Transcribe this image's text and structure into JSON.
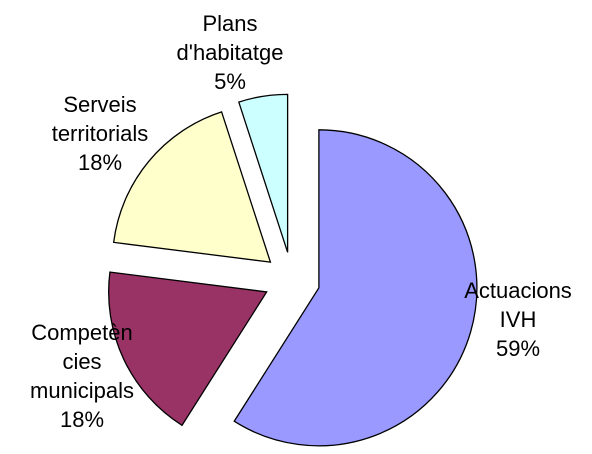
{
  "chart_data": {
    "type": "pie",
    "title": "",
    "slices": [
      {
        "label_lines": [
          "Actuacions",
          "IVH"
        ],
        "percent_label": "59%",
        "value": 59,
        "color": "#9999FF"
      },
      {
        "label_lines": [
          "Competèn",
          "cies",
          "municipals"
        ],
        "percent_label": "18%",
        "value": 18,
        "color": "#993366"
      },
      {
        "label_lines": [
          "Serveis",
          "territorials"
        ],
        "percent_label": "18%",
        "value": 18,
        "color": "#FFFFCC"
      },
      {
        "label_lines": [
          "Plans",
          "d'habitatge"
        ],
        "percent_label": "5%",
        "value": 5,
        "color": "#CCFFFF"
      }
    ]
  }
}
